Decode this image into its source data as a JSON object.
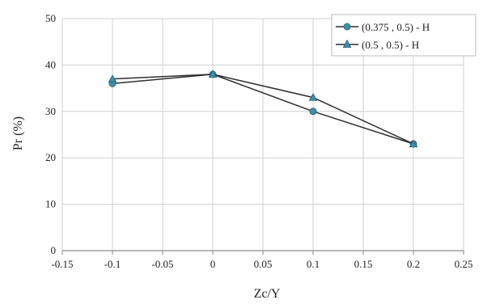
{
  "chart_data": {
    "type": "line",
    "xlabel": "Zc/Y",
    "ylabel": "Pr (%)",
    "xlim": [
      -0.15,
      0.25
    ],
    "ylim": [
      0,
      50
    ],
    "xticks": [
      "-0.15",
      "-0.1",
      "-0.05",
      "0",
      "0.05",
      "0.1",
      "0.15",
      "0.2",
      "0.25"
    ],
    "yticks": [
      "0",
      "10",
      "20",
      "30",
      "40",
      "50"
    ],
    "grid": true,
    "legend_position": "top-right",
    "series": [
      {
        "name": "(0.375 , 0.5) - H",
        "marker": "circle",
        "color": "#3f8fa8",
        "x": [
          -0.1,
          0,
          0.1,
          0.2
        ],
        "y": [
          36,
          38,
          30,
          23
        ]
      },
      {
        "name": "(0.5 , 0.5) - H",
        "marker": "triangle",
        "color": "#3f8fa8",
        "x": [
          -0.1,
          0,
          0.1,
          0.2
        ],
        "y": [
          37,
          38,
          33,
          23
        ]
      }
    ]
  }
}
